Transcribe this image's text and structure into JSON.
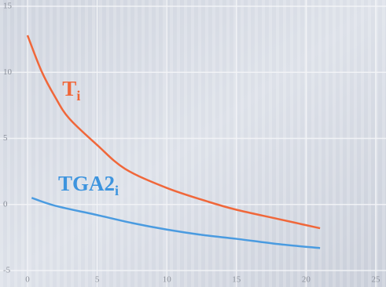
{
  "chart_data": {
    "type": "line",
    "annotations": [
      {
        "text": "T",
        "sub": "i",
        "x": 2.5,
        "y": 8.6,
        "color": "#f0673a"
      },
      {
        "text": "TGA2",
        "sub": "i",
        "x": 2.2,
        "y": 1.4,
        "color": "#3d94de"
      }
    ],
    "series": [
      {
        "name": "T",
        "color": "#f0673a",
        "x": [
          0,
          1,
          2,
          3,
          5,
          7,
          10,
          13,
          15,
          18,
          21
        ],
        "values": [
          12.8,
          10.1,
          8.1,
          6.5,
          4.5,
          2.7,
          1.25,
          0.2,
          -0.4,
          -1.1,
          -1.8
        ]
      },
      {
        "name": "TGA2",
        "color": "#4a9be0",
        "x": [
          0.3,
          2,
          5,
          7.5,
          10,
          12.5,
          15,
          18,
          21
        ],
        "values": [
          0.5,
          -0.1,
          -0.8,
          -1.4,
          -1.9,
          -2.3,
          -2.6,
          -3.0,
          -3.3
        ]
      }
    ],
    "xlim": [
      0,
      25
    ],
    "xticks": [
      0,
      5,
      10,
      15,
      20,
      25
    ],
    "ylim": [
      -5,
      15
    ],
    "yticks": [
      -5,
      0,
      5,
      10,
      15
    ],
    "grid": true
  }
}
